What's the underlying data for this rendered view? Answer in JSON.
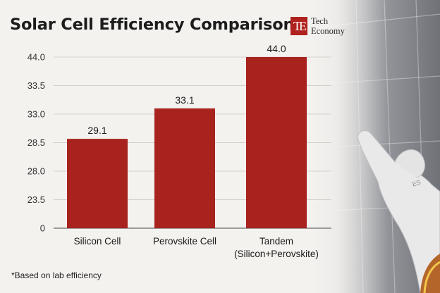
{
  "header": {
    "title": "Solar Cell Efficiency Comparison",
    "logo_mark": "TE",
    "logo_line1": "Tech",
    "logo_line2": "Economy"
  },
  "footnote": "*Based on lab efficiency",
  "chart_data": {
    "type": "bar",
    "title": "Solar Cell Efficiency Comparison",
    "categories": [
      [
        "Silicon Cell"
      ],
      [
        "Perovskite Cell"
      ],
      [
        "Tandem",
        "(Silicon+Perovskite)"
      ]
    ],
    "values": [
      29.1,
      33.1,
      44.0
    ],
    "value_labels": [
      "29.1",
      "33.1",
      "44.0"
    ],
    "y_tick_labels": [
      "0",
      "23.5",
      "28.0",
      "28.5",
      "33.0",
      "33.5",
      "44.0"
    ],
    "xlabel": "",
    "ylabel": "",
    "grid": "horizontal",
    "bar_color": "#a8231e",
    "legend": "none"
  },
  "colors": {
    "bar": "#a8231e",
    "background": "#f4f2ef",
    "grid": "#d3d0cc"
  }
}
